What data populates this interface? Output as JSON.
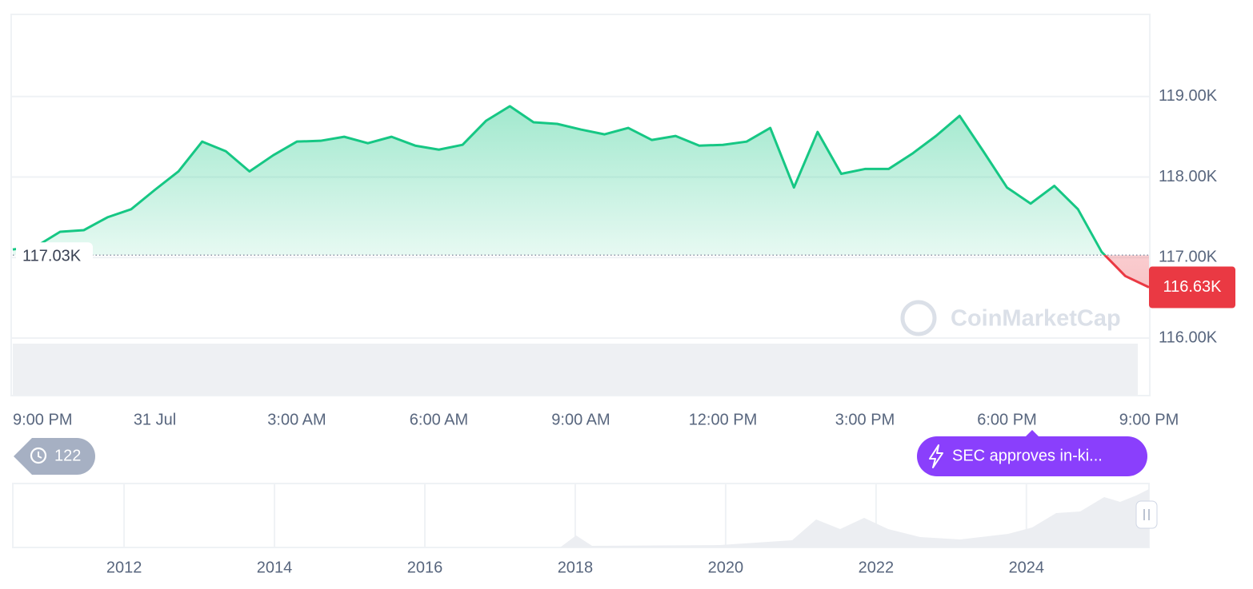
{
  "chart_data": {
    "type": "line",
    "x": [
      0,
      0.5,
      1,
      1.5,
      2,
      2.5,
      3,
      3.5,
      4,
      4.5,
      5,
      5.5,
      6,
      6.5,
      7,
      7.5,
      8,
      8.5,
      9,
      9.5,
      10,
      10.5,
      11,
      11.5,
      12,
      12.5,
      13,
      13.5,
      14,
      14.5,
      15,
      15.5,
      16,
      16.5,
      17,
      17.5,
      18,
      18.5,
      19,
      19.5,
      20,
      20.5,
      21,
      21.5,
      22,
      22.5,
      23,
      23.5,
      24
    ],
    "values": [
      117100,
      117140,
      117320,
      117340,
      117500,
      117600,
      117840,
      118070,
      118440,
      118320,
      118070,
      118270,
      118440,
      118450,
      118500,
      118420,
      118500,
      118390,
      118340,
      118400,
      118700,
      118880,
      118680,
      118660,
      118590,
      118530,
      118610,
      118460,
      118510,
      118390,
      118400,
      118440,
      118610,
      117870,
      118560,
      118040,
      118100,
      118100,
      118290,
      118510,
      118760,
      118320,
      117870,
      117670,
      117890,
      117600,
      117070,
      116770,
      116630
    ],
    "up_color": "#16c784",
    "down_color": "#ea3943",
    "xlim": [
      0,
      24
    ],
    "xticks": [
      {
        "value": 0,
        "label": "9:00 PM"
      },
      {
        "value": 3,
        "label": "31 Jul"
      },
      {
        "value": 6,
        "label": "3:00 AM"
      },
      {
        "value": 9,
        "label": "6:00 AM"
      },
      {
        "value": 12,
        "label": "9:00 AM"
      },
      {
        "value": 15,
        "label": "12:00 PM"
      },
      {
        "value": 18,
        "label": "3:00 PM"
      },
      {
        "value": 21,
        "label": "6:00 PM"
      },
      {
        "value": 24,
        "label": "9:00 PM"
      }
    ],
    "ylim": [
      116000,
      120020
    ],
    "yticks": [
      {
        "value": 116000,
        "label": "116.00K"
      },
      {
        "value": 117000,
        "label": "117.00K"
      },
      {
        "value": 118000,
        "label": "118.00K"
      },
      {
        "value": 119000,
        "label": "119.00K"
      }
    ],
    "grid": true,
    "baseline": {
      "value": 117030,
      "label": "117.03K"
    },
    "last_price": {
      "value": 116630,
      "label": "116.63K"
    },
    "watermark": "CoinMarketCap",
    "history_count": 122,
    "news": "SEC approves in-ki...",
    "navigator": {
      "xlim": [
        2010.52,
        2025.63
      ],
      "xticks": [
        2012,
        2014,
        2016,
        2018,
        2020,
        2022,
        2024
      ]
    }
  }
}
